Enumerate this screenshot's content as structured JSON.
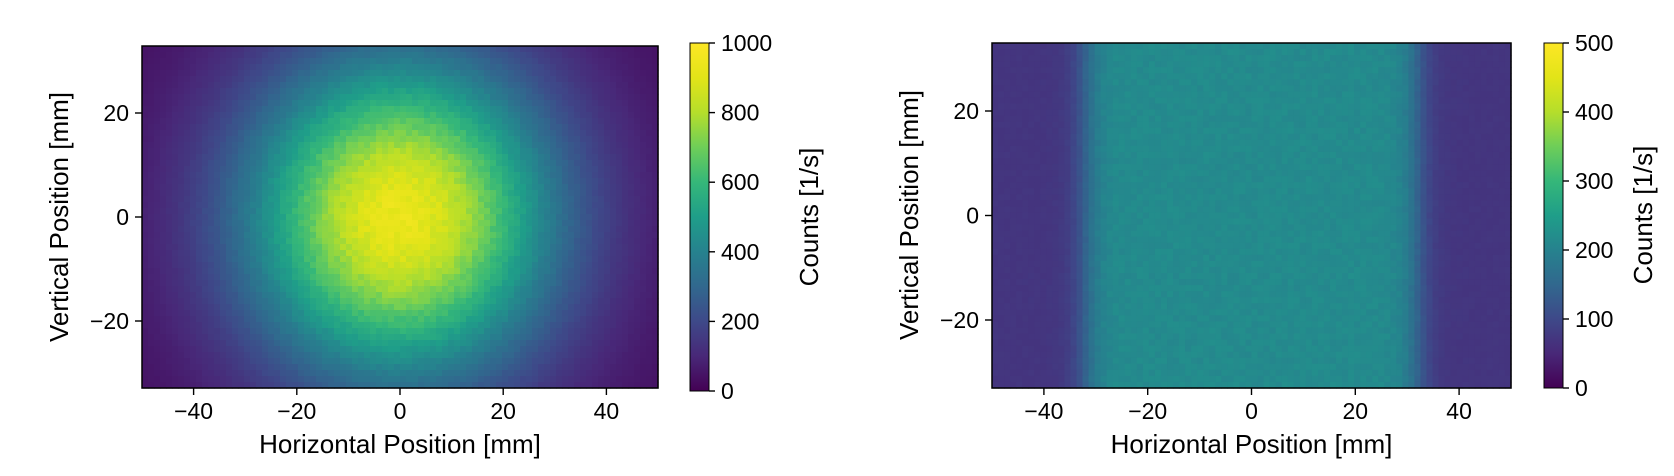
{
  "chart_data": [
    {
      "type": "heatmap",
      "panel": "left",
      "description": "Gaussian-like beam profile",
      "xlabel": "Horizontal Position [mm]",
      "ylabel": "Vertical Position [mm]",
      "xlim": [
        -50,
        50
      ],
      "ylim": [
        -33,
        33
      ],
      "xticks": [
        -40,
        -20,
        0,
        20,
        40
      ],
      "xtick_labels": [
        "−40",
        "−20",
        "0",
        "20",
        "40"
      ],
      "yticks": [
        -20,
        0,
        20
      ],
      "ytick_labels": [
        "−20",
        "0",
        "20"
      ],
      "colorbar": {
        "label": "Counts [1/s]",
        "range": [
          0,
          1000
        ],
        "ticks": [
          0,
          200,
          400,
          600,
          800,
          1000
        ],
        "tick_labels": [
          "0",
          "200",
          "400",
          "600",
          "800",
          "1000"
        ],
        "colormap": "viridis"
      },
      "profile": {
        "shape": "gaussian",
        "peak_counts": 930,
        "center_x_mm": 0,
        "center_y_mm": 0,
        "sigma_x_mm": 21,
        "sigma_y_mm": 22,
        "background_counts": 30
      }
    },
    {
      "type": "heatmap",
      "panel": "right",
      "description": "Flat-top beam profile",
      "xlabel": "Horizontal Position [mm]",
      "ylabel": "Vertical Position [mm]",
      "xlim": [
        -50,
        50
      ],
      "ylim": [
        -33,
        33
      ],
      "xticks": [
        -40,
        -20,
        0,
        20,
        40
      ],
      "xtick_labels": [
        "−40",
        "−20",
        "0",
        "20",
        "40"
      ],
      "yticks": [
        -20,
        0,
        20
      ],
      "ytick_labels": [
        "−20",
        "0",
        "20"
      ],
      "colorbar": {
        "label": "Counts [1/s]",
        "range": [
          0,
          500
        ],
        "ticks": [
          0,
          100,
          200,
          300,
          400,
          500
        ],
        "tick_labels": [
          "0",
          "100",
          "200",
          "300",
          "400",
          "500"
        ],
        "colormap": "viridis"
      },
      "profile": {
        "shape": "flat-top",
        "plateau_counts": 215,
        "background_counts": 70,
        "half_width_x_mm": 32,
        "edge_width_mm": 1.5
      }
    }
  ]
}
